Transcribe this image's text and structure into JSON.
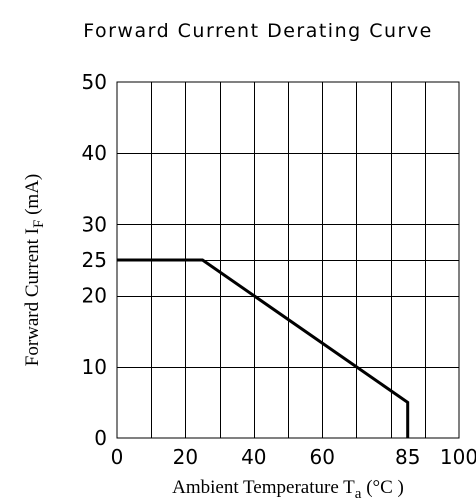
{
  "chart_data": {
    "type": "line",
    "title": "Forward Current Derating Curve",
    "xlabel": {
      "main": "Ambient Temperature T",
      "sub": "a",
      "unit": " (°C )"
    },
    "ylabel": {
      "main": "Forward Current    I",
      "sub": "F",
      "unit": " (mA)"
    },
    "xlim": [
      0,
      100
    ],
    "ylim": [
      0,
      50
    ],
    "x_ticks": [
      {
        "value": 0,
        "label": "0"
      },
      {
        "value": 20,
        "label": "20"
      },
      {
        "value": 40,
        "label": "40"
      },
      {
        "value": 60,
        "label": "60"
      },
      {
        "value": 85,
        "label": "85"
      },
      {
        "value": 100,
        "label": "100"
      }
    ],
    "y_ticks": [
      {
        "value": 0,
        "label": "0"
      },
      {
        "value": 10,
        "label": "10"
      },
      {
        "value": 20,
        "label": "20"
      },
      {
        "value": 25,
        "label": "25"
      },
      {
        "value": 30,
        "label": "30"
      },
      {
        "value": 40,
        "label": "40"
      },
      {
        "value": 50,
        "label": "50"
      }
    ],
    "x_grid": [
      10,
      20,
      30,
      40,
      50,
      60,
      70,
      80,
      90
    ],
    "y_grid": [
      10,
      20,
      25,
      30,
      40
    ],
    "grid": true,
    "series": [
      {
        "x": [
          0,
          25,
          85,
          85
        ],
        "y": [
          25,
          25,
          5,
          0
        ]
      }
    ]
  }
}
